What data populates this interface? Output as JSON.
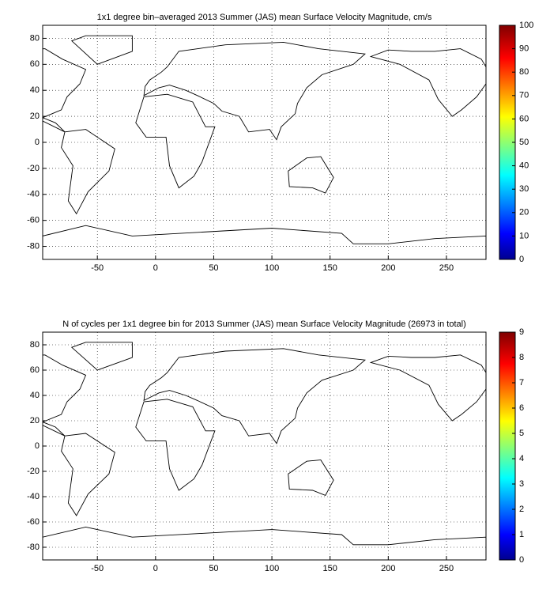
{
  "chart_data": [
    {
      "type": "map",
      "title": "1x1 degree bin–averaged 2013 Summer (JAS) mean Surface Velocity Magnitude, cm/s",
      "xlim": [
        -97,
        284
      ],
      "ylim": [
        -90,
        90
      ],
      "xticks": [
        -50,
        0,
        50,
        100,
        150,
        200,
        250
      ],
      "yticks": [
        -80,
        -60,
        -40,
        -20,
        0,
        20,
        40,
        60,
        80
      ],
      "grid": true,
      "colormap": "jet",
      "clim": [
        0,
        100
      ],
      "cticks": [
        0,
        10,
        20,
        30,
        40,
        50,
        60,
        70,
        80,
        90,
        100
      ]
    },
    {
      "type": "map",
      "title": "N of cycles per 1x1 degree bin for 2013 Summer (JAS) mean Surface Velocity Magnitude (26973 in total)",
      "xlim": [
        -97,
        284
      ],
      "ylim": [
        -90,
        90
      ],
      "xticks": [
        -50,
        0,
        50,
        100,
        150,
        200,
        250
      ],
      "yticks": [
        -80,
        -60,
        -40,
        -20,
        0,
        20,
        40,
        60,
        80
      ],
      "grid": true,
      "colormap": "jet",
      "clim": [
        0,
        9
      ],
      "cticks": [
        0,
        1,
        2,
        3,
        4,
        5,
        6,
        7,
        8,
        9
      ]
    }
  ]
}
